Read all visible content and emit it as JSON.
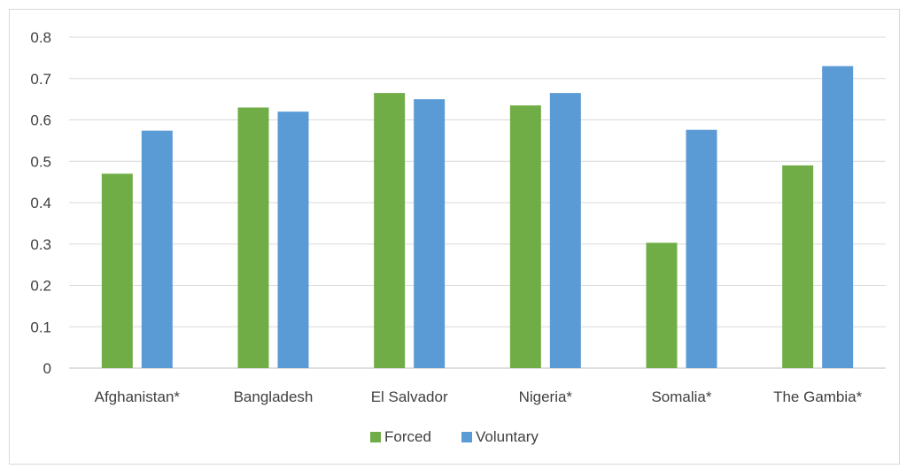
{
  "chart_data": {
    "type": "bar",
    "title": "",
    "xlabel": "",
    "ylabel": "",
    "categories": [
      "Afghanistan*",
      "Bangladesh",
      "El Salvador",
      "Nigeria*",
      "Somalia*",
      "The Gambia*"
    ],
    "series": [
      {
        "name": "Forced",
        "color": "#70ad47",
        "values": [
          0.47,
          0.63,
          0.665,
          0.635,
          0.303,
          0.49
        ]
      },
      {
        "name": "Voluntary",
        "color": "#5b9bd5",
        "values": [
          0.574,
          0.62,
          0.65,
          0.665,
          0.576,
          0.73
        ]
      }
    ],
    "ylim": [
      0,
      0.8
    ],
    "yticks": [
      "0",
      "0.1",
      "0.2",
      "0.3",
      "0.4",
      "0.5",
      "0.6",
      "0.7",
      "0.8"
    ],
    "grid": true,
    "legend_position": "bottom"
  }
}
